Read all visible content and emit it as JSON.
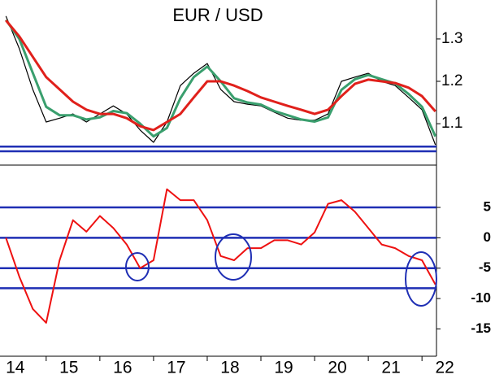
{
  "chart_data": [
    {
      "type": "line",
      "title": "EUR / USD",
      "x": [
        14.25,
        14.5,
        14.75,
        15,
        15.25,
        15.5,
        15.75,
        16,
        16.25,
        16.5,
        16.75,
        17,
        17.25,
        17.5,
        17.75,
        18,
        18.25,
        18.5,
        18.75,
        19,
        19.25,
        19.5,
        19.75,
        20,
        20.25,
        20.5,
        20.75,
        21,
        21.25,
        21.5,
        21.75,
        22,
        22.25
      ],
      "series": [
        {
          "color": "#000000",
          "line_width": 1.2,
          "values": [
            1.354,
            1.277,
            1.181,
            1.104,
            1.113,
            1.123,
            1.104,
            1.123,
            1.142,
            1.123,
            1.085,
            1.056,
            1.104,
            1.19,
            1.219,
            1.242,
            1.181,
            1.152,
            1.146,
            1.142,
            1.127,
            1.113,
            1.108,
            1.108,
            1.123,
            1.2,
            1.21,
            1.219,
            1.2,
            1.19,
            1.162,
            1.133,
            1.05
          ]
        },
        {
          "color": "#3a9f6e",
          "line_width": 3,
          "values": [
            1.345,
            1.3,
            1.22,
            1.14,
            1.12,
            1.12,
            1.11,
            1.115,
            1.13,
            1.125,
            1.1,
            1.07,
            1.09,
            1.16,
            1.21,
            1.235,
            1.2,
            1.16,
            1.15,
            1.145,
            1.13,
            1.12,
            1.11,
            1.105,
            1.115,
            1.18,
            1.205,
            1.215,
            1.205,
            1.195,
            1.17,
            1.14,
            1.07
          ]
        },
        {
          "color": "#e0201b",
          "line_width": 3,
          "values": [
            1.344,
            1.306,
            1.258,
            1.21,
            1.181,
            1.152,
            1.133,
            1.123,
            1.123,
            1.113,
            1.094,
            1.085,
            1.104,
            1.123,
            1.162,
            1.2,
            1.2,
            1.19,
            1.177,
            1.162,
            1.152,
            1.142,
            1.133,
            1.123,
            1.133,
            1.165,
            1.194,
            1.204,
            1.2,
            1.196,
            1.185,
            1.165,
            1.129
          ]
        }
      ],
      "xlim": [
        14.14,
        22.27
      ],
      "ylim": [
        1.008,
        1.392
      ],
      "yticks": [
        1.1,
        1.2,
        1.3
      ],
      "hlines": [
        1.046,
        1.035
      ],
      "hline_color": "#1f2fb4"
    },
    {
      "type": "line",
      "x": [
        14.25,
        14.5,
        14.75,
        15,
        15.25,
        15.5,
        15.75,
        16,
        16.25,
        16.5,
        16.75,
        17,
        17.25,
        17.5,
        17.75,
        18,
        18.25,
        18.5,
        18.75,
        19,
        19.25,
        19.5,
        19.75,
        20,
        20.25,
        20.5,
        20.75,
        21,
        21.25,
        21.5,
        21.75,
        22,
        22.25
      ],
      "series": [
        {
          "color": "#ee1111",
          "line_width": 2,
          "values": [
            0,
            -6.4,
            -11.7,
            -14,
            -3.7,
            2.9,
            1,
            3.6,
            1.6,
            -1.1,
            -5,
            -3.7,
            8,
            6.2,
            6.2,
            2.9,
            -3,
            -3.7,
            -1.7,
            -1.7,
            -0.4,
            -0.4,
            -1.1,
            0.9,
            5.6,
            6.2,
            4.3,
            1.6,
            -1.1,
            -1.7,
            -3,
            -3.7,
            -7.7
          ]
        }
      ],
      "xlim": [
        14.14,
        22.27
      ],
      "xticks": [
        14,
        15,
        16,
        17,
        18,
        19,
        20,
        21,
        22
      ],
      "ylim": [
        -19.5,
        11.7
      ],
      "yticks": [
        5,
        0,
        -5,
        -10,
        -15
      ],
      "hlines": [
        5,
        0,
        -5,
        -8.3
      ],
      "hline_color": "#1f2fb4"
    }
  ]
}
